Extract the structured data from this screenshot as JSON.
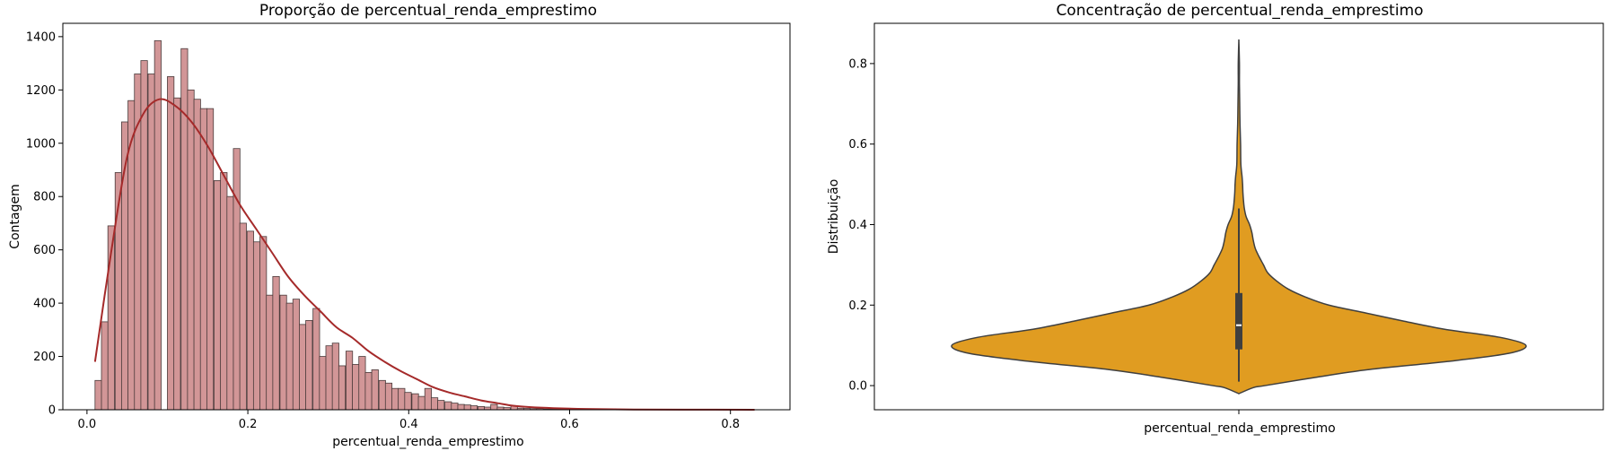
{
  "chart_data": [
    {
      "type": "bar",
      "title": "Proporção de percentual_renda_emprestimo",
      "xlabel": "percentual_renda_emprestimo",
      "ylabel": "Contagem",
      "xlim": [
        -0.03,
        0.874
      ],
      "ylim": [
        0,
        1450
      ],
      "xticks": [
        "0.0",
        "0.2",
        "0.4",
        "0.6",
        "0.8"
      ],
      "yticks": [
        "0",
        "200",
        "400",
        "600",
        "800",
        "1000",
        "1200",
        "1400"
      ],
      "bin_width": 0.0082,
      "x": [
        0.01,
        0.018,
        0.026,
        0.035,
        0.043,
        0.051,
        0.059,
        0.067,
        0.076,
        0.084,
        0.092,
        0.1,
        0.108,
        0.117,
        0.125,
        0.133,
        0.141,
        0.149,
        0.158,
        0.166,
        0.174,
        0.182,
        0.19,
        0.199,
        0.207,
        0.215,
        0.223,
        0.231,
        0.24,
        0.248,
        0.256,
        0.264,
        0.272,
        0.281,
        0.289,
        0.297,
        0.305,
        0.313,
        0.322,
        0.33,
        0.338,
        0.346,
        0.354,
        0.363,
        0.371,
        0.379,
        0.387,
        0.395,
        0.404,
        0.412,
        0.42,
        0.428,
        0.436,
        0.445,
        0.453,
        0.461,
        0.469,
        0.477,
        0.486,
        0.494,
        0.502,
        0.51,
        0.518,
        0.527,
        0.535,
        0.543,
        0.551,
        0.559,
        0.568,
        0.576,
        0.584,
        0.592,
        0.6,
        0.609,
        0.617,
        0.625,
        0.633,
        0.641,
        0.65,
        0.658,
        0.666,
        0.674,
        0.682,
        0.691,
        0.699,
        0.707,
        0.715,
        0.723,
        0.732,
        0.74,
        0.748,
        0.756,
        0.764,
        0.773,
        0.781,
        0.789,
        0.797,
        0.805,
        0.814,
        0.822
      ],
      "values": [
        110,
        330,
        690,
        890,
        1080,
        1160,
        1260,
        1310,
        1260,
        1385,
        0,
        1250,
        1170,
        1355,
        1200,
        1165,
        1130,
        1130,
        860,
        890,
        800,
        980,
        700,
        670,
        630,
        650,
        430,
        500,
        430,
        400,
        415,
        320,
        335,
        380,
        200,
        240,
        250,
        165,
        220,
        170,
        200,
        140,
        150,
        110,
        100,
        80,
        80,
        65,
        60,
        50,
        80,
        45,
        35,
        30,
        25,
        20,
        18,
        15,
        12,
        10,
        20,
        10,
        8,
        15,
        6,
        5,
        4,
        4,
        3,
        3,
        2,
        2,
        2,
        2,
        1,
        1,
        1,
        1,
        1,
        1,
        1,
        1,
        1,
        1,
        0,
        0,
        1,
        0,
        0,
        0,
        0,
        0,
        0,
        0,
        1,
        0,
        0,
        0,
        0,
        0
      ],
      "kde": {
        "x": [
          0.01,
          0.03,
          0.05,
          0.07,
          0.09,
          0.11,
          0.13,
          0.15,
          0.17,
          0.19,
          0.21,
          0.23,
          0.25,
          0.27,
          0.29,
          0.31,
          0.33,
          0.35,
          0.37,
          0.39,
          0.41,
          0.43,
          0.45,
          0.47,
          0.49,
          0.51,
          0.53,
          0.55,
          0.58,
          0.62,
          0.68,
          0.75,
          0.83
        ],
        "y": [
          180,
          590,
          950,
          1110,
          1165,
          1140,
          1080,
          990,
          880,
          770,
          680,
          590,
          500,
          430,
          370,
          310,
          270,
          220,
          180,
          145,
          115,
          85,
          65,
          50,
          35,
          25,
          15,
          10,
          6,
          3,
          1,
          0.5,
          0.2
        ]
      },
      "colors": {
        "bar_fill": "#d29697",
        "bar_edge": "#4a3a3a",
        "kde": "#a52a2a"
      }
    },
    {
      "type": "violin",
      "title": "Concentração de percentual_renda_emprestimo",
      "xlabel": "percentual_renda_emprestimo",
      "ylabel": "Distribuição",
      "ylim": [
        -0.06,
        0.9
      ],
      "yticks": [
        "0.0",
        "0.2",
        "0.4",
        "0.6",
        "0.8"
      ],
      "box": {
        "q1": 0.09,
        "median": 0.15,
        "q3": 0.23,
        "whisker_low": 0.01,
        "whisker_high": 0.44
      },
      "density": {
        "y": [
          -0.02,
          -0.005,
          0.0,
          0.02,
          0.04,
          0.06,
          0.08,
          0.1,
          0.12,
          0.14,
          0.16,
          0.18,
          0.2,
          0.22,
          0.24,
          0.26,
          0.28,
          0.3,
          0.32,
          0.34,
          0.36,
          0.38,
          0.4,
          0.42,
          0.44,
          0.46,
          0.48,
          0.5,
          0.52,
          0.55,
          0.6,
          0.65,
          0.7,
          0.75,
          0.8,
          0.86
        ],
        "w": [
          0.0,
          0.05,
          0.09,
          0.26,
          0.45,
          0.72,
          0.93,
          0.99,
          0.9,
          0.71,
          0.57,
          0.44,
          0.31,
          0.23,
          0.17,
          0.13,
          0.1,
          0.085,
          0.07,
          0.057,
          0.05,
          0.045,
          0.037,
          0.025,
          0.019,
          0.016,
          0.014,
          0.013,
          0.011,
          0.007,
          0.006,
          0.004,
          0.003,
          0.002,
          0.002,
          0.0
        ]
      },
      "colors": {
        "fill": "#e09c21",
        "edge": "#3f3f3f",
        "box": "#3f3f3f",
        "median": "#ffffff"
      }
    }
  ]
}
